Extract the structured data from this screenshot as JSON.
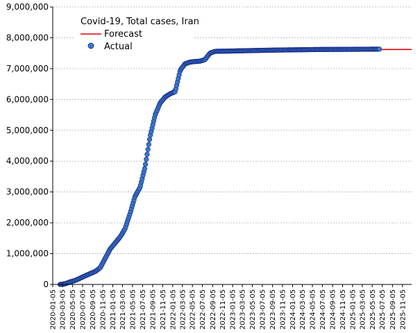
{
  "chart_data": {
    "type": "line",
    "title": "Covid-19, Total cases, Iran",
    "legend": {
      "placement": "top-left",
      "entries": [
        "Forecast",
        "Actual"
      ]
    },
    "colors": {
      "forecast": "#e00000",
      "actual_fill": "#3a78c8",
      "actual_edge": "#1a2f8a",
      "axis": "#000000",
      "grid": "#b0b0b0"
    },
    "grid": true,
    "ylim": [
      0,
      9000000
    ],
    "y_ticks": [
      {
        "value": 0,
        "label": "0"
      },
      {
        "value": 1000000,
        "label": "1,000,000"
      },
      {
        "value": 2000000,
        "label": "2,000,000"
      },
      {
        "value": 3000000,
        "label": "3,000,000"
      },
      {
        "value": 4000000,
        "label": "4,000,000"
      },
      {
        "value": 5000000,
        "label": "5,000,000"
      },
      {
        "value": 6000000,
        "label": "6,000,000"
      },
      {
        "value": 7000000,
        "label": "7,000,000"
      },
      {
        "value": 8000000,
        "label": "8,000,000"
      },
      {
        "value": 9000000,
        "label": "9,000,000"
      }
    ],
    "xlim": [
      "2020-01-05",
      "2025-12-31"
    ],
    "x_ticks": [
      "2020-01-05",
      "2020-03-05",
      "2020-05-05",
      "2020-07-05",
      "2020-09-05",
      "2020-11-05",
      "2021-01-05",
      "2021-03-05",
      "2021-05-05",
      "2021-07-05",
      "2021-09-05",
      "2021-11-05",
      "2022-01-05",
      "2022-03-05",
      "2022-05-05",
      "2022-07-05",
      "2022-09-05",
      "2022-11-05",
      "2023-01-05",
      "2023-03-05",
      "2023-05-05",
      "2023-07-05",
      "2023-09-05",
      "2023-11-05",
      "2024-01-05",
      "2024-03-05",
      "2024-05-05",
      "2024-07-05",
      "2024-09-05",
      "2024-11-05",
      "2025-01-05",
      "2025-03-05",
      "2025-05-05",
      "2025-07-05",
      "2025-09-05",
      "2025-11-05"
    ],
    "series": [
      {
        "name": "Forecast",
        "points": [
          [
            "2020-02-19",
            0
          ],
          [
            "2020-03-20",
            20000
          ],
          [
            "2020-04-20",
            80000
          ],
          [
            "2020-05-20",
            130000
          ],
          [
            "2020-06-20",
            200000
          ],
          [
            "2020-07-20",
            280000
          ],
          [
            "2020-08-20",
            360000
          ],
          [
            "2020-09-20",
            450000
          ],
          [
            "2020-10-20",
            580000
          ],
          [
            "2020-11-20",
            850000
          ],
          [
            "2020-12-20",
            1150000
          ],
          [
            "2021-01-20",
            1350000
          ],
          [
            "2021-02-20",
            1550000
          ],
          [
            "2021-03-20",
            1800000
          ],
          [
            "2021-04-20",
            2300000
          ],
          [
            "2021-05-20",
            2850000
          ],
          [
            "2021-06-20",
            3150000
          ],
          [
            "2021-07-20",
            3800000
          ],
          [
            "2021-08-20",
            4800000
          ],
          [
            "2021-09-20",
            5500000
          ],
          [
            "2021-10-20",
            5880000
          ],
          [
            "2021-11-20",
            6080000
          ],
          [
            "2021-12-20",
            6180000
          ],
          [
            "2022-01-20",
            6400000
          ],
          [
            "2022-02-20",
            6900000
          ],
          [
            "2022-03-20",
            7120000
          ],
          [
            "2022-04-20",
            7190000
          ],
          [
            "2022-05-20",
            7220000
          ],
          [
            "2022-06-20",
            7240000
          ],
          [
            "2022-07-20",
            7300000
          ],
          [
            "2022-08-20",
            7500000
          ],
          [
            "2022-09-20",
            7580000
          ],
          [
            "2022-11-20",
            7590000
          ],
          [
            "2023-03-20",
            7600000
          ],
          [
            "2023-09-20",
            7610000
          ],
          [
            "2024-06-20",
            7615000
          ],
          [
            "2025-12-31",
            7620000
          ]
        ]
      },
      {
        "name": "Actual",
        "points": [
          [
            "2020-02-19",
            5
          ],
          [
            "2020-03-20",
            20000
          ],
          [
            "2020-04-20",
            82000
          ],
          [
            "2020-05-20",
            127000
          ],
          [
            "2020-06-20",
            202000
          ],
          [
            "2020-07-20",
            278000
          ],
          [
            "2020-08-20",
            350000
          ],
          [
            "2020-09-20",
            420000
          ],
          [
            "2020-10-20",
            540000
          ],
          [
            "2020-11-20",
            850000
          ],
          [
            "2020-12-20",
            1150000
          ],
          [
            "2021-01-20",
            1350000
          ],
          [
            "2021-02-20",
            1550000
          ],
          [
            "2021-03-20",
            1800000
          ],
          [
            "2021-04-20",
            2300000
          ],
          [
            "2021-05-20",
            2850000
          ],
          [
            "2021-06-20",
            3150000
          ],
          [
            "2021-07-20",
            3800000
          ],
          [
            "2021-08-20",
            4800000
          ],
          [
            "2021-09-20",
            5500000
          ],
          [
            "2021-10-20",
            5880000
          ],
          [
            "2021-11-20",
            6080000
          ],
          [
            "2021-12-20",
            6180000
          ],
          [
            "2022-01-20",
            6250000
          ],
          [
            "2022-02-20",
            6950000
          ],
          [
            "2022-03-20",
            7150000
          ],
          [
            "2022-04-20",
            7210000
          ],
          [
            "2022-05-20",
            7230000
          ],
          [
            "2022-06-20",
            7240000
          ],
          [
            "2022-07-20",
            7290000
          ],
          [
            "2022-08-20",
            7500000
          ],
          [
            "2022-09-20",
            7560000
          ],
          [
            "2022-11-20",
            7565000
          ],
          [
            "2023-03-20",
            7580000
          ],
          [
            "2023-09-20",
            7600000
          ],
          [
            "2024-06-20",
            7620000
          ],
          [
            "2025-06-20",
            7630000
          ]
        ]
      }
    ]
  }
}
